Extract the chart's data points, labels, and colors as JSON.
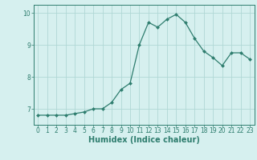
{
  "x": [
    0,
    1,
    2,
    3,
    4,
    5,
    6,
    7,
    8,
    9,
    10,
    11,
    12,
    13,
    14,
    15,
    16,
    17,
    18,
    19,
    20,
    21,
    22,
    23
  ],
  "y": [
    6.8,
    6.8,
    6.8,
    6.8,
    6.85,
    6.9,
    7.0,
    7.0,
    7.2,
    7.6,
    7.8,
    9.0,
    9.7,
    9.55,
    9.8,
    9.95,
    9.7,
    9.2,
    8.8,
    8.6,
    8.35,
    8.75,
    8.75,
    8.55
  ],
  "line_color": "#2e7d6e",
  "marker": "D",
  "marker_size": 2.0,
  "background_color": "#d6f0ef",
  "grid_color": "#b0d8d5",
  "axis_color": "#2e7d6e",
  "xlabel": "Humidex (Indice chaleur)",
  "ylim": [
    6.5,
    10.25
  ],
  "xlim": [
    -0.5,
    23.5
  ],
  "yticks": [
    7,
    8,
    9,
    10
  ],
  "xticks": [
    0,
    1,
    2,
    3,
    4,
    5,
    6,
    7,
    8,
    9,
    10,
    11,
    12,
    13,
    14,
    15,
    16,
    17,
    18,
    19,
    20,
    21,
    22,
    23
  ],
  "tick_fontsize": 5.5,
  "xlabel_fontsize": 7.0,
  "xlabel_fontweight": "bold"
}
